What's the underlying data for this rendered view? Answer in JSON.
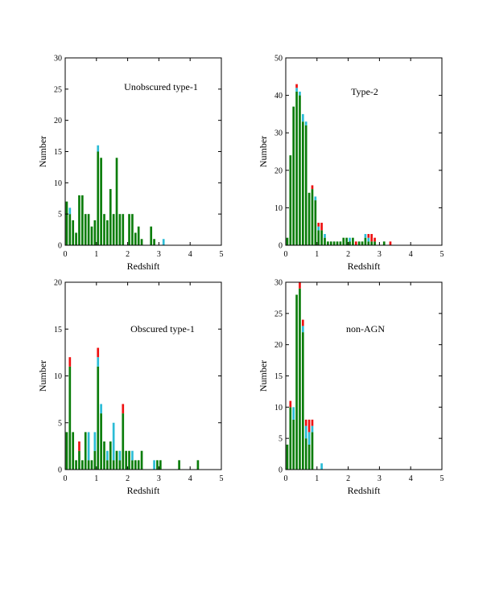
{
  "colors": {
    "green": "#0b7d0b",
    "cyan": "#2bbcd6",
    "red": "#ee1111",
    "axis": "#000000"
  },
  "chart_data": [
    {
      "type": "bar",
      "stacked": true,
      "title": "Unobscured type-1",
      "xlabel": "Redshift",
      "ylabel": "Number",
      "xlim": [
        0,
        5
      ],
      "ylim": [
        0,
        30
      ],
      "xticks": [
        "0",
        "1",
        "2",
        "3",
        "4",
        "5"
      ],
      "yticks": [
        "0",
        "5",
        "10",
        "15",
        "20",
        "25",
        "30"
      ],
      "bin_width": 0.1,
      "x": [
        0.05,
        0.15,
        0.25,
        0.35,
        0.45,
        0.55,
        0.65,
        0.75,
        0.85,
        0.95,
        1.05,
        1.15,
        1.25,
        1.35,
        1.45,
        1.55,
        1.65,
        1.75,
        1.85,
        1.95,
        2.05,
        2.15,
        2.25,
        2.35,
        2.45,
        2.55,
        2.65,
        2.75,
        2.85,
        2.95,
        3.05,
        3.15,
        3.25
      ],
      "series": [
        {
          "name": "green",
          "values": [
            7,
            5,
            4,
            2,
            8,
            8,
            5,
            5,
            3,
            4,
            15,
            14,
            5,
            4,
            9,
            5,
            14,
            5,
            5,
            0,
            5,
            5,
            2,
            3,
            1,
            0,
            0,
            3,
            1,
            0,
            0,
            0,
            0
          ]
        },
        {
          "name": "cyan",
          "values": [
            0,
            1,
            0,
            0,
            0,
            0,
            0,
            0,
            0,
            0,
            1,
            0,
            0,
            0,
            0,
            0,
            0,
            0,
            0,
            0,
            0,
            0,
            0,
            0,
            0,
            0,
            0,
            0,
            0,
            0,
            0,
            1,
            0
          ]
        },
        {
          "name": "red",
          "values": [
            0,
            0,
            0,
            0,
            0,
            0,
            0,
            0,
            0,
            0,
            0,
            0,
            0,
            0,
            0,
            0,
            0,
            0,
            0,
            0,
            0,
            0,
            0,
            0,
            0,
            0,
            0,
            0,
            0,
            0,
            0,
            0,
            0
          ]
        }
      ]
    },
    {
      "type": "bar",
      "stacked": true,
      "title": "Type-2",
      "xlabel": "Redshift",
      "ylabel": "Number",
      "xlim": [
        0,
        5
      ],
      "ylim": [
        0,
        50
      ],
      "xticks": [
        "0",
        "1",
        "2",
        "3",
        "4",
        "5"
      ],
      "yticks": [
        "0",
        "10",
        "20",
        "30",
        "40",
        "50"
      ],
      "bin_width": 0.1,
      "x": [
        0.05,
        0.15,
        0.25,
        0.35,
        0.45,
        0.55,
        0.65,
        0.75,
        0.85,
        0.95,
        1.05,
        1.15,
        1.25,
        1.35,
        1.45,
        1.55,
        1.65,
        1.75,
        1.85,
        1.95,
        2.05,
        2.15,
        2.25,
        2.35,
        2.45,
        2.55,
        2.65,
        2.75,
        2.85,
        2.95,
        3.05,
        3.15,
        3.25,
        3.35
      ],
      "series": [
        {
          "name": "green",
          "values": [
            2,
            24,
            37,
            41,
            40,
            33,
            32,
            14,
            15,
            12,
            4,
            4,
            2,
            1,
            1,
            1,
            1,
            1,
            2,
            2,
            1,
            2,
            0,
            1,
            1,
            2,
            1,
            1,
            1,
            0,
            0,
            1,
            0,
            0
          ]
        },
        {
          "name": "cyan",
          "values": [
            0,
            0,
            0,
            1,
            1,
            2,
            1,
            0,
            0,
            1,
            1,
            0,
            1,
            0,
            0,
            0,
            0,
            0,
            0,
            0,
            1,
            0,
            0,
            0,
            0,
            1,
            1,
            0,
            0,
            0,
            0,
            0,
            0,
            0
          ]
        },
        {
          "name": "red",
          "values": [
            0,
            0,
            0,
            1,
            0,
            0,
            0,
            0,
            1,
            0,
            1,
            2,
            0,
            0,
            0,
            0,
            0,
            0,
            0,
            0,
            0,
            0,
            1,
            0,
            0,
            0,
            1,
            2,
            1,
            0,
            0,
            0,
            0,
            1
          ]
        }
      ]
    },
    {
      "type": "bar",
      "stacked": true,
      "title": "Obscured type-1",
      "xlabel": "Redshift",
      "ylabel": "Number",
      "xlim": [
        0,
        5
      ],
      "ylim": [
        0,
        20
      ],
      "xticks": [
        "0",
        "1",
        "2",
        "3",
        "4",
        "5"
      ],
      "yticks": [
        "0",
        "5",
        "10",
        "15",
        "20"
      ],
      "bin_width": 0.1,
      "x": [
        0.05,
        0.15,
        0.25,
        0.35,
        0.45,
        0.55,
        0.65,
        0.75,
        0.85,
        0.95,
        1.05,
        1.15,
        1.25,
        1.35,
        1.45,
        1.55,
        1.65,
        1.75,
        1.85,
        1.95,
        2.05,
        2.15,
        2.25,
        2.35,
        2.45,
        2.55,
        2.65,
        2.75,
        2.85,
        2.95,
        3.05,
        3.15,
        3.25,
        3.35,
        3.45,
        3.55,
        3.65,
        3.75,
        3.85,
        3.95,
        4.05,
        4.15,
        4.25,
        4.35
      ],
      "series": [
        {
          "name": "green",
          "values": [
            4,
            11,
            4,
            1,
            2,
            1,
            4,
            1,
            1,
            2,
            11,
            6,
            3,
            1,
            3,
            1,
            2,
            1,
            6,
            2,
            2,
            1,
            1,
            1,
            2,
            0,
            0,
            0,
            0,
            1,
            1,
            0,
            0,
            0,
            0,
            0,
            1,
            0,
            0,
            0,
            0,
            0,
            1,
            0
          ]
        },
        {
          "name": "cyan",
          "values": [
            0,
            0,
            0,
            0,
            0,
            0,
            0,
            3,
            0,
            2,
            1,
            1,
            0,
            1,
            0,
            4,
            0,
            1,
            0,
            0,
            0,
            1,
            0,
            0,
            0,
            0,
            0,
            0,
            1,
            0,
            0,
            0,
            0,
            0,
            0,
            0,
            0,
            0,
            0,
            0,
            0,
            0,
            0,
            0
          ]
        },
        {
          "name": "red",
          "values": [
            0,
            1,
            0,
            0,
            1,
            0,
            0,
            0,
            0,
            0,
            1,
            0,
            0,
            0,
            0,
            0,
            0,
            0,
            1,
            0,
            0,
            0,
            0,
            0,
            0,
            0,
            0,
            0,
            0,
            0,
            0,
            0,
            0,
            0,
            0,
            0,
            0,
            0,
            0,
            0,
            0,
            0,
            0,
            0
          ]
        }
      ]
    },
    {
      "type": "bar",
      "stacked": true,
      "title": "non-AGN",
      "xlabel": "Redshift",
      "ylabel": "Number",
      "xlim": [
        0,
        5
      ],
      "ylim": [
        0,
        30
      ],
      "xticks": [
        "0",
        "1",
        "2",
        "3",
        "4",
        "5"
      ],
      "yticks": [
        "0",
        "5",
        "10",
        "15",
        "20",
        "25",
        "30"
      ],
      "bin_width": 0.1,
      "x": [
        0.05,
        0.15,
        0.25,
        0.35,
        0.45,
        0.55,
        0.65,
        0.75,
        0.85,
        0.95,
        1.05,
        1.15,
        1.25
      ],
      "series": [
        {
          "name": "green",
          "values": [
            4,
            10,
            8,
            28,
            29,
            22,
            5,
            4,
            6,
            0,
            0,
            0,
            0
          ]
        },
        {
          "name": "cyan",
          "values": [
            0,
            0,
            2,
            0,
            0,
            1,
            2,
            2,
            1,
            0,
            0,
            1,
            0
          ]
        },
        {
          "name": "red",
          "values": [
            0,
            1,
            0,
            0,
            1,
            1,
            1,
            2,
            1,
            0,
            0,
            0,
            0
          ]
        }
      ]
    }
  ]
}
